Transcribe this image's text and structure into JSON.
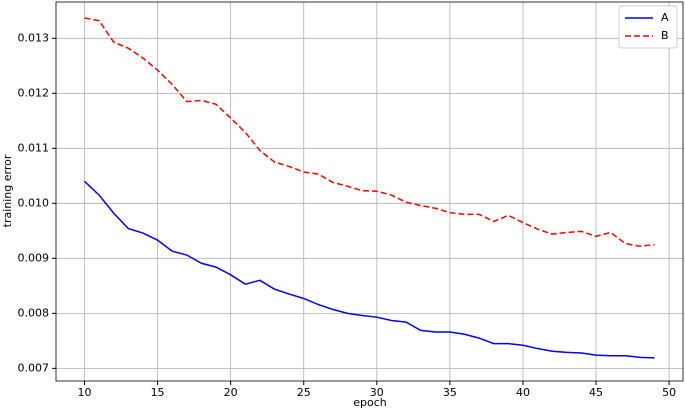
{
  "chart_data": {
    "type": "line",
    "x_label": "epoch",
    "y_label": "training error",
    "x": [
      10,
      11,
      12,
      13,
      14,
      15,
      16,
      17,
      18,
      19,
      20,
      21,
      22,
      23,
      24,
      25,
      26,
      27,
      28,
      29,
      30,
      31,
      32,
      33,
      34,
      35,
      36,
      37,
      38,
      39,
      40,
      41,
      42,
      43,
      44,
      45,
      46,
      47,
      48,
      49
    ],
    "series": [
      {
        "name": "A",
        "color": "#0000ff",
        "linestyle": "-",
        "values": [
          0.0104,
          0.01015,
          0.00982,
          0.00954,
          0.00946,
          0.00933,
          0.00913,
          0.00906,
          0.00891,
          0.00884,
          0.0087,
          0.00853,
          0.0086,
          0.00844,
          0.00835,
          0.00827,
          0.00816,
          0.00807,
          0.008,
          0.00796,
          0.00793,
          0.00787,
          0.00784,
          0.00769,
          0.00766,
          0.00766,
          0.00762,
          0.00755,
          0.00745,
          0.00745,
          0.00742,
          0.00736,
          0.00731,
          0.00729,
          0.00728,
          0.00724,
          0.00723,
          0.00723,
          0.0072,
          0.00719
        ]
      },
      {
        "name": "B",
        "color": "#ff0000",
        "linestyle": "--",
        "values": [
          0.01337,
          0.01332,
          0.01293,
          0.01282,
          0.01264,
          0.01242,
          0.01216,
          0.01185,
          0.01187,
          0.0118,
          0.01155,
          0.01129,
          0.01096,
          0.01075,
          0.01067,
          0.01057,
          0.01053,
          0.01038,
          0.01031,
          0.01023,
          0.01022,
          0.01015,
          0.01002,
          0.00996,
          0.00991,
          0.00983,
          0.0098,
          0.0098,
          0.00967,
          0.00978,
          0.00965,
          0.00953,
          0.00944,
          0.00947,
          0.00949,
          0.0094,
          0.00947,
          0.00927,
          0.00922,
          0.00925
        ]
      }
    ],
    "xlim": [
      8.05,
      50.95
    ],
    "xticks": [
      10,
      15,
      20,
      25,
      30,
      35,
      40,
      45,
      50
    ],
    "ylim": [
      0.00677,
      0.01366
    ],
    "yticks": [
      0.007,
      0.008,
      0.009,
      {
        "value": 0.01,
        "label": "0.010"
      },
      0.011,
      0.012,
      0.013
    ],
    "grid": true,
    "legend": "upper right"
  }
}
